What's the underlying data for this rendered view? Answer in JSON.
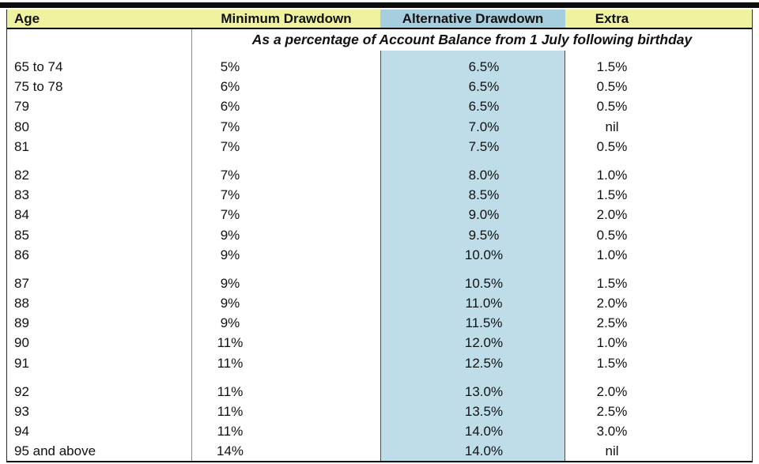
{
  "colors": {
    "header_yellow": "#eff39f",
    "header_blue": "#a7cedf",
    "highlight_blue": "#bedde8",
    "ink": "#111111"
  },
  "table": {
    "columns": [
      {
        "key": "age",
        "label": "Age"
      },
      {
        "key": "min",
        "label": "Minimum Drawdown"
      },
      {
        "key": "alt",
        "label": "Alternative Drawdown"
      },
      {
        "key": "extra",
        "label": "Extra"
      }
    ],
    "subtitle": "As a percentage of Account Balance from 1 July following birthday",
    "groups": [
      {
        "rows": [
          {
            "age": "65 to 74",
            "min": "5%",
            "alt": "6.5%",
            "extra": "1.5%"
          },
          {
            "age": "75 to 78",
            "min": "6%",
            "alt": "6.5%",
            "extra": "0.5%"
          },
          {
            "age": "79",
            "min": "6%",
            "alt": "6.5%",
            "extra": "0.5%"
          },
          {
            "age": "80",
            "min": "7%",
            "alt": "7.0%",
            "extra": "nil"
          },
          {
            "age": "81",
            "min": "7%",
            "alt": "7.5%",
            "extra": "0.5%"
          }
        ]
      },
      {
        "rows": [
          {
            "age": "82",
            "min": "7%",
            "alt": "8.0%",
            "extra": "1.0%"
          },
          {
            "age": "83",
            "min": "7%",
            "alt": "8.5%",
            "extra": "1.5%"
          },
          {
            "age": "84",
            "min": "7%",
            "alt": "9.0%",
            "extra": "2.0%"
          },
          {
            "age": "85",
            "min": "9%",
            "alt": "9.5%",
            "extra": "0.5%"
          },
          {
            "age": "86",
            "min": "9%",
            "alt": "10.0%",
            "extra": "1.0%"
          }
        ]
      },
      {
        "rows": [
          {
            "age": "87",
            "min": "9%",
            "alt": "10.5%",
            "extra": "1.5%"
          },
          {
            "age": "88",
            "min": "9%",
            "alt": "11.0%",
            "extra": "2.0%"
          },
          {
            "age": "89",
            "min": "9%",
            "alt": "11.5%",
            "extra": "2.5%"
          },
          {
            "age": "90",
            "min": "11%",
            "alt": "12.0%",
            "extra": "1.0%"
          },
          {
            "age": "91",
            "min": "11%",
            "alt": "12.5%",
            "extra": "1.5%"
          }
        ]
      },
      {
        "rows": [
          {
            "age": "92",
            "min": "11%",
            "alt": "13.0%",
            "extra": "2.0%"
          },
          {
            "age": "93",
            "min": "11%",
            "alt": "13.5%",
            "extra": "2.5%"
          },
          {
            "age": "94",
            "min": "11%",
            "alt": "14.0%",
            "extra": "3.0%"
          },
          {
            "age": "95 and above",
            "min": "14%",
            "alt": "14.0%",
            "extra": "nil"
          }
        ]
      }
    ]
  }
}
